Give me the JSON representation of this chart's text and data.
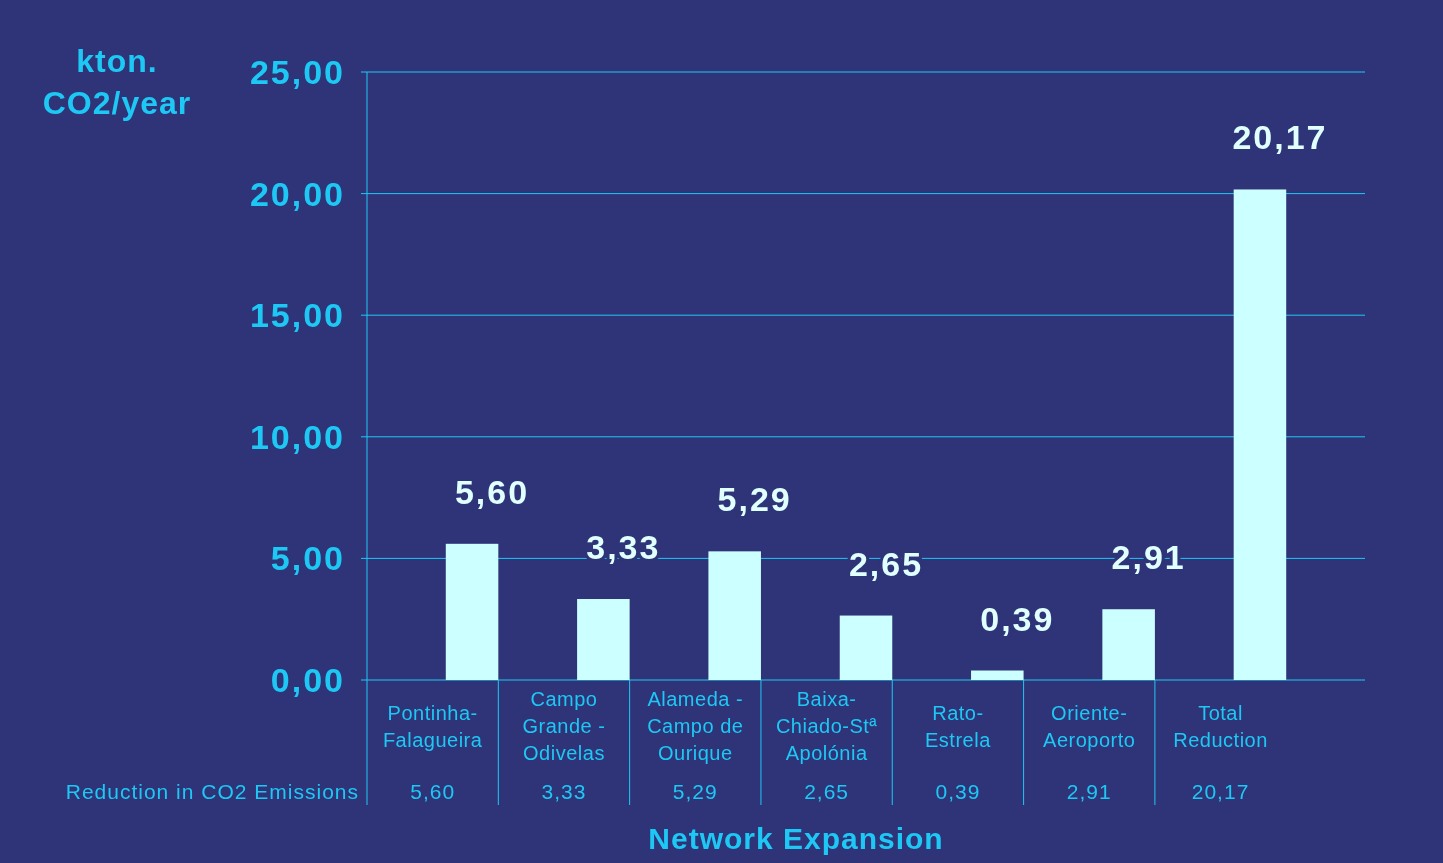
{
  "chart_data": {
    "type": "bar",
    "ylabel": "kton. CO2/year",
    "xlabel": "Network Expansion",
    "categories": [
      "Pontinha-Falagueira",
      "Campo Grande - Odivelas",
      "Alameda - Campo de Ourique",
      "Baixa-Chiado-Stª Apolónia",
      "Rato-Estrela",
      "Oriente-Aeroporto",
      "Total Reduction"
    ],
    "series": [
      {
        "name": "Reduction in CO2 Emissions",
        "color": "#ccffff",
        "values": [
          5.6,
          3.33,
          5.29,
          2.65,
          0.39,
          2.91,
          20.17
        ],
        "value_labels": [
          "5,60",
          "3,33",
          "5,29",
          "2,65",
          "0,39",
          "2,91",
          "20,17"
        ]
      }
    ],
    "ylim": [
      0,
      25
    ],
    "yticks": [
      {
        "value": 0,
        "label": "0,00"
      },
      {
        "value": 5,
        "label": "5,00"
      },
      {
        "value": 10,
        "label": "10,00"
      },
      {
        "value": 15,
        "label": "15,00"
      },
      {
        "value": 20,
        "label": "20,00"
      },
      {
        "value": 25,
        "label": "25,00"
      }
    ],
    "grid": "y"
  }
}
